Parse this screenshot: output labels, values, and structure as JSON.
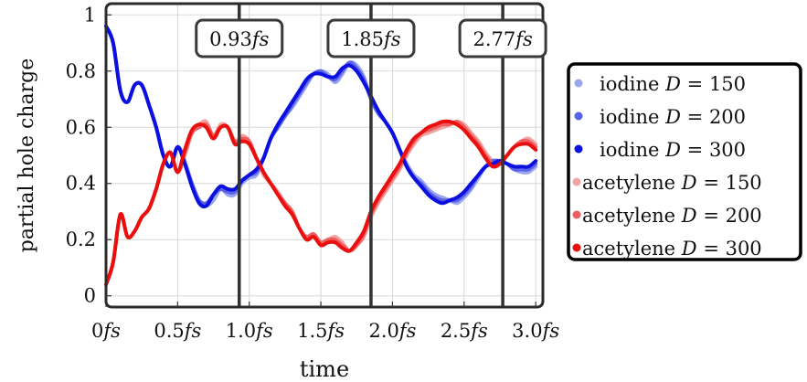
{
  "chart_data": {
    "type": "line",
    "xlabel": "time",
    "ylabel": "partial hole charge",
    "xlim": [
      0,
      3.05
    ],
    "ylim": [
      -0.04,
      1.04
    ],
    "grid": true,
    "legend_position": "right",
    "x_ticks": [
      {
        "value": 0,
        "label": "0fs"
      },
      {
        "value": 0.5,
        "label": "0.5fs"
      },
      {
        "value": 1.0,
        "label": "1.0fs"
      },
      {
        "value": 1.5,
        "label": "1.5fs"
      },
      {
        "value": 2.0,
        "label": "2.0fs"
      },
      {
        "value": 2.5,
        "label": "2.5fs"
      },
      {
        "value": 3.0,
        "label": "3.0fs"
      }
    ],
    "y_ticks": [
      {
        "value": 0,
        "label": "0"
      },
      {
        "value": 0.2,
        "label": "0.2"
      },
      {
        "value": 0.4,
        "label": "0.4"
      },
      {
        "value": 0.6,
        "label": "0.6"
      },
      {
        "value": 0.8,
        "label": "0.8"
      },
      {
        "value": 1,
        "label": "1"
      }
    ],
    "annotations": [
      {
        "x": 0.93,
        "label": "0.93fs"
      },
      {
        "x": 1.85,
        "label": "1.85fs"
      },
      {
        "x": 2.77,
        "label": "2.77fs"
      }
    ],
    "x": [
      0,
      0.05,
      0.1,
      0.15,
      0.2,
      0.25,
      0.3,
      0.35,
      0.4,
      0.45,
      0.5,
      0.55,
      0.6,
      0.65,
      0.7,
      0.75,
      0.8,
      0.85,
      0.9,
      0.95,
      1.0,
      1.05,
      1.1,
      1.15,
      1.2,
      1.25,
      1.3,
      1.35,
      1.4,
      1.45,
      1.5,
      1.55,
      1.6,
      1.65,
      1.7,
      1.75,
      1.8,
      1.85,
      1.9,
      1.95,
      2.0,
      2.05,
      2.1,
      2.15,
      2.2,
      2.25,
      2.3,
      2.35,
      2.4,
      2.45,
      2.5,
      2.55,
      2.6,
      2.65,
      2.7,
      2.75,
      2.8,
      2.85,
      2.9,
      2.95,
      3.0
    ],
    "series": [
      {
        "name": "iodine D = 150",
        "color": "#9aa6ee",
        "values": [
          0.96,
          0.9,
          0.73,
          0.69,
          0.75,
          0.75,
          0.68,
          0.6,
          0.5,
          0.46,
          0.53,
          0.48,
          0.4,
          0.34,
          0.32,
          0.34,
          0.38,
          0.36,
          0.36,
          0.4,
          0.42,
          0.43,
          0.49,
          0.56,
          0.6,
          0.64,
          0.67,
          0.71,
          0.75,
          0.79,
          0.8,
          0.79,
          0.76,
          0.79,
          0.83,
          0.82,
          0.78,
          0.7,
          0.65,
          0.62,
          0.58,
          0.52,
          0.47,
          0.43,
          0.41,
          0.38,
          0.36,
          0.35,
          0.34,
          0.33,
          0.35,
          0.38,
          0.42,
          0.46,
          0.48,
          0.48,
          0.47,
          0.45,
          0.44,
          0.44,
          0.46
        ]
      },
      {
        "name": "iodine D = 200",
        "color": "#5a63e8",
        "values": [
          0.96,
          0.9,
          0.73,
          0.69,
          0.75,
          0.75,
          0.68,
          0.6,
          0.5,
          0.46,
          0.53,
          0.47,
          0.4,
          0.34,
          0.33,
          0.36,
          0.38,
          0.37,
          0.37,
          0.41,
          0.43,
          0.44,
          0.49,
          0.56,
          0.6,
          0.64,
          0.68,
          0.72,
          0.76,
          0.79,
          0.8,
          0.78,
          0.77,
          0.8,
          0.83,
          0.81,
          0.77,
          0.7,
          0.65,
          0.62,
          0.58,
          0.52,
          0.46,
          0.42,
          0.4,
          0.37,
          0.35,
          0.34,
          0.34,
          0.34,
          0.36,
          0.39,
          0.43,
          0.46,
          0.48,
          0.48,
          0.47,
          0.45,
          0.45,
          0.45,
          0.47
        ]
      },
      {
        "name": "iodine D = 300",
        "color": "#0b0fe0",
        "values": [
          0.96,
          0.9,
          0.73,
          0.69,
          0.75,
          0.75,
          0.68,
          0.6,
          0.5,
          0.46,
          0.53,
          0.47,
          0.39,
          0.33,
          0.32,
          0.36,
          0.39,
          0.38,
          0.38,
          0.41,
          0.43,
          0.45,
          0.49,
          0.56,
          0.61,
          0.65,
          0.69,
          0.73,
          0.77,
          0.79,
          0.79,
          0.78,
          0.78,
          0.81,
          0.82,
          0.8,
          0.76,
          0.71,
          0.66,
          0.62,
          0.58,
          0.52,
          0.46,
          0.42,
          0.39,
          0.36,
          0.34,
          0.33,
          0.34,
          0.35,
          0.37,
          0.4,
          0.43,
          0.46,
          0.47,
          0.48,
          0.47,
          0.46,
          0.46,
          0.46,
          0.48
        ]
      },
      {
        "name": "acetylene D = 150",
        "color": "#f2a4a4",
        "values": [
          0.04,
          0.12,
          0.29,
          0.21,
          0.23,
          0.28,
          0.31,
          0.38,
          0.47,
          0.51,
          0.44,
          0.5,
          0.58,
          0.61,
          0.62,
          0.57,
          0.61,
          0.6,
          0.55,
          0.57,
          0.55,
          0.49,
          0.43,
          0.4,
          0.37,
          0.33,
          0.3,
          0.24,
          0.21,
          0.22,
          0.19,
          0.2,
          0.21,
          0.19,
          0.16,
          0.18,
          0.21,
          0.28,
          0.33,
          0.37,
          0.41,
          0.45,
          0.5,
          0.54,
          0.57,
          0.58,
          0.59,
          0.6,
          0.61,
          0.62,
          0.61,
          0.58,
          0.55,
          0.51,
          0.48,
          0.48,
          0.5,
          0.53,
          0.55,
          0.56,
          0.54
        ]
      },
      {
        "name": "acetylene D = 200",
        "color": "#ef5e5e",
        "values": [
          0.04,
          0.12,
          0.29,
          0.21,
          0.23,
          0.28,
          0.31,
          0.38,
          0.47,
          0.51,
          0.44,
          0.51,
          0.58,
          0.6,
          0.61,
          0.57,
          0.6,
          0.6,
          0.55,
          0.56,
          0.55,
          0.49,
          0.44,
          0.4,
          0.36,
          0.33,
          0.3,
          0.24,
          0.21,
          0.22,
          0.19,
          0.2,
          0.2,
          0.18,
          0.16,
          0.18,
          0.22,
          0.29,
          0.34,
          0.38,
          0.42,
          0.46,
          0.51,
          0.55,
          0.58,
          0.59,
          0.6,
          0.61,
          0.61,
          0.62,
          0.6,
          0.57,
          0.54,
          0.5,
          0.47,
          0.47,
          0.5,
          0.53,
          0.55,
          0.55,
          0.53
        ]
      },
      {
        "name": "acetylene D = 300",
        "color": "#ea0f0f",
        "values": [
          0.04,
          0.12,
          0.29,
          0.21,
          0.23,
          0.28,
          0.31,
          0.38,
          0.47,
          0.51,
          0.44,
          0.52,
          0.59,
          0.61,
          0.6,
          0.56,
          0.6,
          0.6,
          0.54,
          0.55,
          0.54,
          0.49,
          0.44,
          0.4,
          0.36,
          0.32,
          0.29,
          0.24,
          0.2,
          0.21,
          0.18,
          0.19,
          0.19,
          0.17,
          0.16,
          0.19,
          0.23,
          0.3,
          0.35,
          0.39,
          0.43,
          0.47,
          0.52,
          0.56,
          0.58,
          0.6,
          0.61,
          0.62,
          0.62,
          0.61,
          0.59,
          0.56,
          0.53,
          0.49,
          0.46,
          0.47,
          0.5,
          0.53,
          0.54,
          0.54,
          0.52
        ]
      }
    ]
  }
}
